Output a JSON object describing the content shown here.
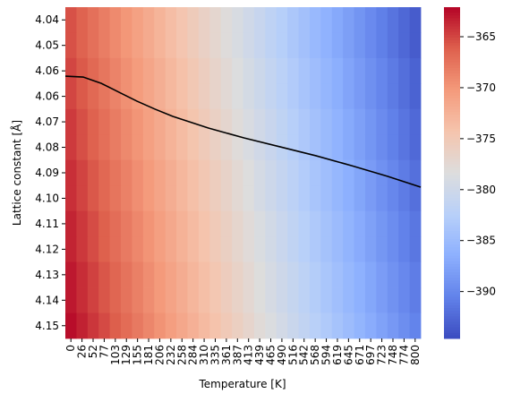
{
  "chart_data": {
    "type": "heatmap",
    "x_label": "Temperature [K]",
    "y_label": "Lattice constant [Å]",
    "colormap": "coolwarm",
    "columns": [
      0,
      26,
      52,
      77,
      103,
      129,
      155,
      181,
      206,
      232,
      258,
      284,
      310,
      335,
      361,
      387,
      413,
      439,
      465,
      490,
      516,
      542,
      568,
      594,
      619,
      645,
      671,
      697,
      723,
      748,
      774,
      800
    ],
    "rows": [
      "4.04",
      "4.05",
      "4.06",
      "4.06",
      "4.07",
      "4.08",
      "4.09",
      "4.10",
      "4.11",
      "4.12",
      "4.13",
      "4.14",
      "4.15"
    ],
    "values": [
      [
        -365.5,
        -366.4,
        -367.3,
        -368.2,
        -369.1,
        -370.0,
        -370.9,
        -371.8,
        -372.7,
        -373.6,
        -374.5,
        -375.4,
        -376.3,
        -377.2,
        -378.1,
        -379.0,
        -379.9,
        -380.8,
        -381.7,
        -382.6,
        -383.5,
        -384.4,
        -385.3,
        -386.2,
        -387.1,
        -388.0,
        -388.9,
        -389.8,
        -390.7,
        -391.6,
        -392.5,
        -393.4
      ],
      [
        -365.5,
        -366.4,
        -367.3,
        -368.2,
        -369.1,
        -370.0,
        -370.9,
        -371.8,
        -372.7,
        -373.6,
        -374.5,
        -375.4,
        -376.3,
        -377.2,
        -378.1,
        -379.0,
        -379.9,
        -380.8,
        -381.7,
        -382.6,
        -383.5,
        -384.4,
        -385.3,
        -386.2,
        -387.1,
        -388.0,
        -388.9,
        -389.8,
        -390.7,
        -391.6,
        -392.5,
        -393.4
      ],
      [
        -365.0,
        -365.9,
        -366.8,
        -367.7,
        -368.6,
        -369.5,
        -370.4,
        -371.3,
        -372.2,
        -373.1,
        -374.0,
        -374.9,
        -375.8,
        -376.7,
        -377.6,
        -378.5,
        -379.4,
        -380.3,
        -381.2,
        -382.1,
        -383.0,
        -383.9,
        -384.8,
        -385.7,
        -386.6,
        -387.5,
        -388.4,
        -389.3,
        -390.2,
        -391.1,
        -392.0,
        -392.9
      ],
      [
        -365.0,
        -365.9,
        -366.8,
        -367.7,
        -368.6,
        -369.5,
        -370.4,
        -371.3,
        -372.2,
        -373.1,
        -374.0,
        -374.9,
        -375.8,
        -376.7,
        -377.6,
        -378.5,
        -379.4,
        -380.3,
        -381.2,
        -382.1,
        -383.0,
        -383.9,
        -384.8,
        -385.7,
        -386.6,
        -387.5,
        -388.4,
        -389.3,
        -390.2,
        -391.1,
        -392.0,
        -392.9
      ],
      [
        -364.5,
        -365.4,
        -366.3,
        -367.2,
        -368.1,
        -369.0,
        -369.9,
        -370.8,
        -371.7,
        -372.6,
        -373.5,
        -374.4,
        -375.3,
        -376.2,
        -377.1,
        -378.0,
        -378.9,
        -379.8,
        -380.7,
        -381.6,
        -382.5,
        -383.4,
        -384.3,
        -385.2,
        -386.1,
        -387.0,
        -387.9,
        -388.8,
        -389.7,
        -390.6,
        -391.5,
        -392.4
      ],
      [
        -364.5,
        -365.4,
        -366.3,
        -367.2,
        -368.1,
        -369.0,
        -369.9,
        -370.8,
        -371.7,
        -372.6,
        -373.5,
        -374.4,
        -375.3,
        -376.2,
        -377.1,
        -378.0,
        -378.9,
        -379.8,
        -380.7,
        -381.6,
        -382.5,
        -383.4,
        -384.3,
        -385.2,
        -386.1,
        -387.0,
        -387.9,
        -388.8,
        -389.7,
        -390.6,
        -391.5,
        -392.4
      ],
      [
        -364.0,
        -364.9,
        -365.8,
        -366.7,
        -367.6,
        -368.5,
        -369.4,
        -370.3,
        -371.2,
        -372.1,
        -373.0,
        -373.9,
        -374.8,
        -375.7,
        -376.6,
        -377.5,
        -378.4,
        -379.3,
        -380.2,
        -381.1,
        -382.0,
        -382.9,
        -383.8,
        -384.7,
        -385.6,
        -386.5,
        -387.4,
        -388.3,
        -389.2,
        -390.1,
        -391.0,
        -391.9
      ],
      [
        -364.0,
        -364.9,
        -365.8,
        -366.7,
        -367.6,
        -368.5,
        -369.4,
        -370.3,
        -371.2,
        -372.1,
        -373.0,
        -373.9,
        -374.8,
        -375.7,
        -376.6,
        -377.5,
        -378.4,
        -379.3,
        -380.2,
        -381.1,
        -382.0,
        -382.9,
        -383.8,
        -384.7,
        -385.6,
        -386.5,
        -387.4,
        -388.3,
        -389.2,
        -390.1,
        -391.0,
        -391.9
      ],
      [
        -363.5,
        -364.4,
        -365.3,
        -366.2,
        -367.1,
        -368.0,
        -368.9,
        -369.8,
        -370.7,
        -371.6,
        -372.5,
        -373.4,
        -374.3,
        -375.2,
        -376.1,
        -377.0,
        -377.9,
        -378.8,
        -379.7,
        -380.6,
        -381.5,
        -382.4,
        -383.3,
        -384.2,
        -385.1,
        -386.0,
        -386.9,
        -387.8,
        -388.7,
        -389.6,
        -390.5,
        -391.4
      ],
      [
        -363.5,
        -364.4,
        -365.3,
        -366.2,
        -367.1,
        -368.0,
        -368.9,
        -369.8,
        -370.7,
        -371.6,
        -372.5,
        -373.4,
        -374.3,
        -375.2,
        -376.1,
        -377.0,
        -377.9,
        -378.8,
        -379.7,
        -380.6,
        -381.5,
        -382.4,
        -383.3,
        -384.2,
        -385.1,
        -386.0,
        -386.9,
        -387.8,
        -388.7,
        -389.6,
        -390.5,
        -391.4
      ],
      [
        -363.0,
        -363.9,
        -364.8,
        -365.7,
        -366.6,
        -367.5,
        -368.4,
        -369.3,
        -370.2,
        -371.1,
        -372.0,
        -372.9,
        -373.8,
        -374.7,
        -375.6,
        -376.5,
        -377.4,
        -378.3,
        -379.2,
        -380.1,
        -381.0,
        -381.9,
        -382.8,
        -383.7,
        -384.6,
        -385.5,
        -386.4,
        -387.3,
        -388.2,
        -389.1,
        -390.0,
        -390.9
      ],
      [
        -363.0,
        -363.9,
        -364.8,
        -365.7,
        -366.6,
        -367.5,
        -368.4,
        -369.3,
        -370.2,
        -371.1,
        -372.0,
        -372.9,
        -373.8,
        -374.7,
        -375.6,
        -376.5,
        -377.4,
        -378.3,
        -379.2,
        -380.1,
        -381.0,
        -381.9,
        -382.8,
        -383.7,
        -384.6,
        -385.5,
        -386.4,
        -387.3,
        -388.2,
        -389.1,
        -390.0,
        -390.9
      ],
      [
        -362.5,
        -363.4,
        -364.3,
        -365.2,
        -366.1,
        -367.0,
        -367.9,
        -368.8,
        -369.7,
        -370.6,
        -371.5,
        -372.4,
        -373.3,
        -374.2,
        -375.1,
        -376.0,
        -376.9,
        -377.8,
        -378.7,
        -379.6,
        -380.5,
        -381.4,
        -382.3,
        -383.2,
        -384.1,
        -385.0,
        -385.9,
        -386.8,
        -387.7,
        -388.6,
        -389.5,
        -390.4
      ]
    ],
    "clim": [
      -394.6,
      -362.1
    ],
    "cticks": [
      {
        "value": -365,
        "label": "−365"
      },
      {
        "value": -370,
        "label": "−370"
      },
      {
        "value": -375,
        "label": "−375"
      },
      {
        "value": -380,
        "label": "−380"
      },
      {
        "value": -385,
        "label": "−385"
      },
      {
        "value": -390,
        "label": "−390"
      }
    ],
    "line": {
      "color": "#000000",
      "xlim": [
        0,
        800
      ],
      "ylim": [
        4.0355,
        4.155
      ],
      "x": [
        0,
        40,
        81,
        121,
        161,
        202,
        242,
        322,
        403,
        484,
        564,
        645,
        725,
        800
      ],
      "y": [
        4.0604,
        4.0607,
        4.063,
        4.0662,
        4.0694,
        4.0723,
        4.0749,
        4.0791,
        4.0827,
        4.0859,
        4.0891,
        4.0927,
        4.0965,
        4.1004
      ]
    }
  }
}
